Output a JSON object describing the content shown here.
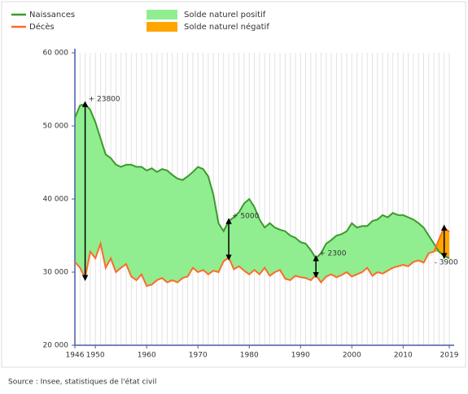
{
  "chart_data": {
    "type": "area-line",
    "x": [
      1946,
      1947,
      1948,
      1949,
      1950,
      1951,
      1952,
      1953,
      1954,
      1955,
      1956,
      1957,
      1958,
      1959,
      1960,
      1961,
      1962,
      1963,
      1964,
      1965,
      1966,
      1967,
      1968,
      1969,
      1970,
      1971,
      1972,
      1973,
      1974,
      1975,
      1976,
      1977,
      1978,
      1979,
      1980,
      1981,
      1982,
      1983,
      1984,
      1985,
      1986,
      1987,
      1988,
      1989,
      1990,
      1991,
      1992,
      1993,
      1994,
      1995,
      1996,
      1997,
      1998,
      1999,
      2000,
      2001,
      2002,
      2003,
      2004,
      2005,
      2006,
      2007,
      2008,
      2009,
      2010,
      2011,
      2012,
      2013,
      2014,
      2015,
      2016,
      2017,
      2018,
      2019
    ],
    "series": [
      {
        "name": "Naissances",
        "color": "#3c9a2c",
        "values": [
          51100,
          52800,
          53000,
          52200,
          50500,
          48300,
          46100,
          45600,
          44700,
          44400,
          44700,
          44700,
          44400,
          44400,
          43900,
          44200,
          43700,
          44100,
          43900,
          43300,
          42800,
          42600,
          43100,
          43700,
          44400,
          44100,
          43100,
          40600,
          36700,
          35600,
          37000,
          37500,
          38200,
          39400,
          40000,
          38900,
          37200,
          36100,
          36700,
          36100,
          35800,
          35600,
          35000,
          34700,
          34100,
          33900,
          33000,
          31900,
          32600,
          33900,
          34400,
          35000,
          35200,
          35600,
          36700,
          36100,
          36300,
          36300,
          37000,
          37200,
          37800,
          37500,
          38100,
          37800,
          37800,
          37500,
          37200,
          36700,
          36100,
          35000,
          33900,
          32800,
          32200,
          31900
        ]
      },
      {
        "name": "Décès",
        "color": "#ff6a2a",
        "values": [
          31400,
          30600,
          29200,
          32800,
          31900,
          33900,
          30600,
          31900,
          30000,
          30600,
          31100,
          29400,
          28900,
          29700,
          28100,
          28300,
          28900,
          29200,
          28600,
          28900,
          28600,
          29200,
          29400,
          30600,
          30000,
          30300,
          29700,
          30200,
          30000,
          31500,
          32000,
          30400,
          30800,
          30200,
          29700,
          30300,
          29700,
          30600,
          29500,
          30000,
          30300,
          29100,
          28900,
          29500,
          29300,
          29200,
          28900,
          29600,
          28600,
          29400,
          29700,
          29300,
          29600,
          30000,
          29400,
          29700,
          30000,
          30600,
          29500,
          30000,
          29800,
          30200,
          30600,
          30800,
          31000,
          30800,
          31400,
          31600,
          31300,
          32600,
          32800,
          34500,
          36100,
          35500
        ]
      }
    ],
    "fills": [
      {
        "name": "Solde naturel positif",
        "color": "#90ee90"
      },
      {
        "name": "Solde naturel négatif",
        "color": "#ffa500"
      }
    ],
    "annotations": [
      {
        "x": 1948,
        "text": "+ 23800"
      },
      {
        "x": 1976,
        "text": "+ 5000"
      },
      {
        "x": 1993,
        "text": "+ 2300"
      },
      {
        "x": 2018,
        "text": "- 3900"
      }
    ],
    "xlim": [
      1946,
      2019
    ],
    "xticks": [
      1946,
      1950,
      1960,
      1970,
      1980,
      1990,
      2000,
      2010,
      2019
    ],
    "ylim": [
      20000,
      60000
    ],
    "yticks": [
      {
        "value": 20000,
        "label": "20 000"
      },
      {
        "value": 30000,
        "label": "30 000"
      },
      {
        "value": 40000,
        "label": "40 000"
      },
      {
        "value": 50000,
        "label": "50 000"
      },
      {
        "value": 60000,
        "label": "60 000"
      }
    ],
    "grid": true,
    "source": "Source : Insee, statistiques de l'état civil"
  }
}
